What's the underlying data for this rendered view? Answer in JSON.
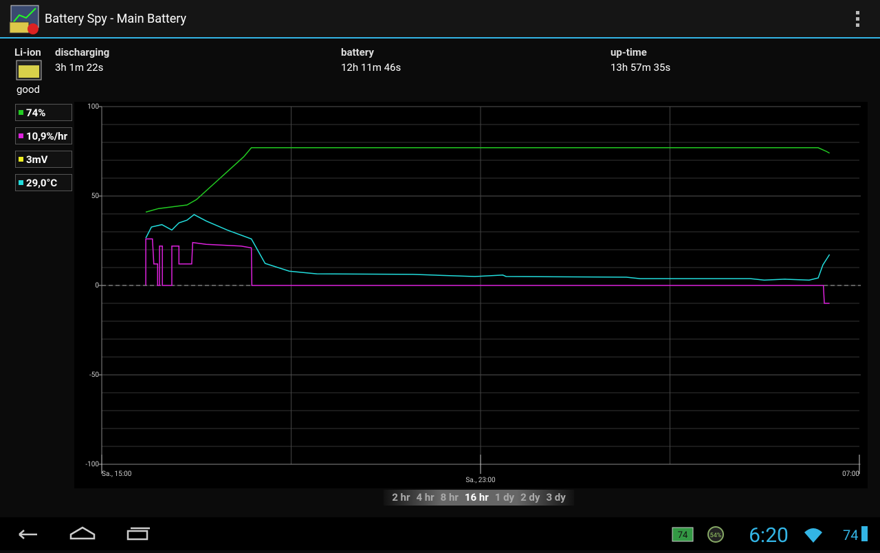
{
  "app_bar": {
    "title": "Battery Spy - Main Battery"
  },
  "info": {
    "chemistry": "Li-ion",
    "health": "good",
    "fields": [
      {
        "label": "discharging",
        "value": "3h 1m 22s"
      },
      {
        "label": "battery",
        "value": "12h 11m 46s"
      },
      {
        "label": "up-time",
        "value": "13h 57m 35s"
      }
    ]
  },
  "chart_data": {
    "type": "line",
    "xlim": [
      15,
      31
    ],
    "xticks": [
      {
        "value": 15,
        "label": "Sa., 15:00"
      },
      {
        "value": 23,
        "label": "Sa., 23:00"
      },
      {
        "value": 31,
        "label": "07:00"
      }
    ],
    "ylim": [
      -100,
      100
    ],
    "yticks": [
      -100,
      -50,
      0,
      50,
      100
    ],
    "grid": true,
    "series": [
      {
        "name": "74%",
        "color": "#22cc22",
        "x": [
          15.93,
          16.2,
          16.5,
          16.8,
          17.0,
          17.5,
          18.0,
          18.16,
          20,
          24,
          28,
          30.13,
          30.3,
          30.37
        ],
        "values": [
          41,
          43,
          44,
          45,
          48,
          60,
          72,
          77,
          77,
          77,
          77,
          77,
          75,
          74
        ]
      },
      {
        "name": "10,9%/hr",
        "color": "#dd22dd",
        "x": [
          15.93,
          15.93,
          16.07,
          16.1,
          16.18,
          16.18,
          16.22,
          16.22,
          16.28,
          16.28,
          16.48,
          16.48,
          16.63,
          16.63,
          16.9,
          16.92,
          17.21,
          17.94,
          18.16,
          18.17,
          30.24,
          30.26,
          30.37
        ],
        "values": [
          0,
          26,
          26,
          12,
          12,
          0,
          0,
          22,
          22,
          0,
          0,
          22,
          22,
          12,
          12,
          24,
          23,
          22,
          21,
          0,
          0,
          -10,
          -10
        ]
      },
      {
        "name": "3mV",
        "color": "#eeee22",
        "x": [],
        "values": []
      },
      {
        "name": "29,0°C",
        "color": "#22dddd",
        "x": [
          15.93,
          16.05,
          16.27,
          16.48,
          16.63,
          16.8,
          16.95,
          17.21,
          17.65,
          18.16,
          18.45,
          18.96,
          19.54,
          21.57,
          22.88,
          23.47,
          23.54,
          26.08,
          26.37,
          28.7,
          28.99,
          29.43,
          29.94,
          30.13,
          30.23,
          30.37
        ],
        "values": [
          26.5,
          32.7,
          34,
          31,
          35,
          36.5,
          39.6,
          36,
          31,
          26,
          12.3,
          8,
          6.5,
          6.2,
          5,
          5.8,
          5,
          4.6,
          3.8,
          3.8,
          3,
          3.5,
          3,
          4.2,
          11.5,
          17.3
        ]
      }
    ]
  },
  "range_options": [
    {
      "label": "2 hr",
      "selected": false
    },
    {
      "label": "4 hr",
      "selected": false
    },
    {
      "label": "8 hr",
      "selected": false
    },
    {
      "label": "16 hr",
      "selected": true
    },
    {
      "label": "1 dy",
      "selected": false
    },
    {
      "label": "2 dy",
      "selected": false
    },
    {
      "label": "3 dy",
      "selected": false
    }
  ],
  "status_bar": {
    "clock": "6:20",
    "battery": "74",
    "widget_percent": "54%",
    "widget_level": "74"
  }
}
